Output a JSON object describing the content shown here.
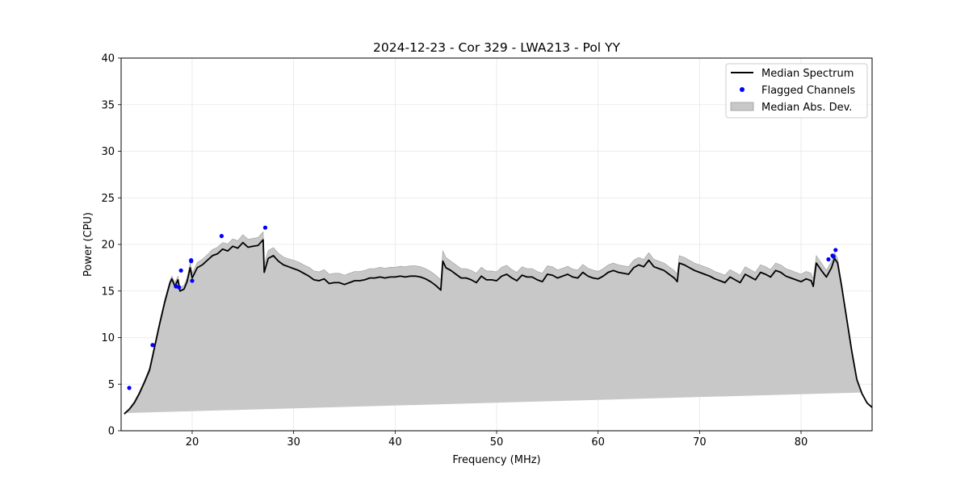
{
  "chart_data": {
    "type": "line",
    "title": "2024-12-23 - Cor 329 - LWA213 - Pol YY",
    "xlabel": "Frequency (MHz)",
    "ylabel": "Power (CPU)",
    "xlim": [
      13,
      87
    ],
    "ylim": [
      0,
      40
    ],
    "xticks": [
      20,
      30,
      40,
      50,
      60,
      70,
      80
    ],
    "yticks": [
      0,
      5,
      10,
      15,
      20,
      25,
      30,
      35,
      40
    ],
    "grid": true,
    "legend_position": "top-right",
    "legend": [
      "Median Spectrum",
      "Flagged Channels",
      "Median Abs. Dev."
    ],
    "colors": {
      "median": "#000000",
      "flagged": "#0000ff",
      "mad_fill": "#c8c8c8",
      "mad_edge": "#9a9a9a"
    },
    "series": [
      {
        "name": "Median Spectrum",
        "x": [
          13.3,
          13.8,
          14.3,
          14.8,
          15.3,
          15.8,
          16.3,
          16.8,
          17.3,
          17.8,
          18.0,
          18.3,
          18.6,
          18.8,
          19.2,
          19.5,
          19.8,
          20.0,
          20.5,
          21.0,
          21.5,
          22.0,
          22.5,
          23.0,
          23.5,
          24.0,
          24.5,
          25.0,
          25.5,
          26.0,
          26.5,
          27.0,
          27.1,
          27.5,
          28.0,
          28.5,
          29.0,
          29.5,
          30.0,
          30.5,
          31.0,
          31.5,
          32.0,
          32.5,
          33.0,
          33.5,
          34.0,
          34.5,
          35.0,
          35.5,
          36.0,
          36.5,
          37.0,
          37.5,
          38.0,
          38.5,
          39.0,
          39.5,
          40.0,
          40.5,
          41.0,
          41.5,
          42.0,
          42.5,
          43.0,
          43.5,
          44.0,
          44.5,
          44.7,
          45.0,
          45.5,
          46.0,
          46.5,
          47.0,
          47.5,
          48.0,
          48.5,
          49.0,
          49.5,
          50.0,
          50.5,
          51.0,
          51.5,
          52.0,
          52.5,
          53.0,
          53.5,
          54.0,
          54.5,
          55.0,
          55.5,
          56.0,
          56.5,
          57.0,
          57.5,
          58.0,
          58.5,
          59.0,
          59.5,
          60.0,
          60.5,
          61.0,
          61.5,
          62.0,
          62.5,
          63.0,
          63.5,
          64.0,
          64.5,
          65.0,
          65.5,
          66.0,
          66.5,
          67.0,
          67.5,
          67.8,
          68.0,
          68.5,
          69.0,
          69.5,
          70.0,
          70.5,
          71.0,
          71.5,
          72.0,
          72.5,
          73.0,
          73.5,
          74.0,
          74.5,
          75.0,
          75.5,
          76.0,
          76.5,
          77.0,
          77.5,
          78.0,
          78.5,
          79.0,
          79.5,
          80.0,
          80.5,
          81.0,
          81.2,
          81.5,
          82.0,
          82.5,
          83.0,
          83.3,
          83.6,
          84.0,
          84.5,
          85.0,
          85.5,
          86.0,
          86.5,
          87.0
        ],
        "values": [
          1.8,
          2.3,
          3.0,
          4.0,
          5.2,
          6.5,
          9.0,
          11.5,
          13.8,
          15.8,
          16.3,
          15.5,
          16.2,
          15.0,
          15.2,
          16.0,
          17.5,
          16.4,
          17.5,
          17.8,
          18.3,
          18.8,
          19.0,
          19.5,
          19.3,
          19.8,
          19.6,
          20.2,
          19.7,
          19.8,
          19.9,
          20.5,
          17.0,
          18.5,
          18.8,
          18.2,
          17.8,
          17.6,
          17.4,
          17.2,
          16.9,
          16.6,
          16.2,
          16.1,
          16.3,
          15.8,
          15.9,
          15.9,
          15.7,
          15.9,
          16.1,
          16.1,
          16.2,
          16.4,
          16.4,
          16.5,
          16.4,
          16.5,
          16.5,
          16.6,
          16.5,
          16.6,
          16.6,
          16.5,
          16.3,
          16.0,
          15.6,
          15.1,
          18.2,
          17.5,
          17.2,
          16.8,
          16.4,
          16.4,
          16.2,
          15.9,
          16.6,
          16.2,
          16.2,
          16.1,
          16.6,
          16.8,
          16.4,
          16.1,
          16.7,
          16.5,
          16.5,
          16.2,
          16.0,
          16.8,
          16.7,
          16.4,
          16.6,
          16.8,
          16.5,
          16.4,
          17.0,
          16.6,
          16.4,
          16.3,
          16.6,
          17.0,
          17.2,
          17.0,
          16.9,
          16.8,
          17.5,
          17.8,
          17.6,
          18.3,
          17.6,
          17.4,
          17.2,
          16.8,
          16.4,
          16.0,
          18.0,
          17.8,
          17.5,
          17.2,
          17.0,
          16.8,
          16.6,
          16.3,
          16.1,
          15.9,
          16.5,
          16.2,
          15.9,
          16.8,
          16.5,
          16.2,
          17.0,
          16.8,
          16.5,
          17.2,
          17.0,
          16.6,
          16.4,
          16.2,
          16.0,
          16.3,
          16.1,
          15.5,
          18.0,
          17.2,
          16.5,
          17.5,
          18.5,
          18.0,
          15.5,
          12.0,
          8.5,
          5.5,
          4.0,
          3.0,
          2.5
        ]
      },
      {
        "name": "Median Abs. Dev.",
        "mad": [
          0.1,
          0.1,
          0.15,
          0.2,
          0.2,
          0.3,
          0.3,
          0.3,
          0.3,
          0.3,
          0.3,
          0.4,
          0.4,
          0.4,
          0.4,
          0.45,
          0.5,
          0.5,
          0.55,
          0.6,
          0.6,
          0.65,
          0.7,
          0.7,
          0.75,
          0.8,
          0.8,
          0.85,
          0.85,
          0.85,
          0.85,
          0.85,
          0.85,
          0.85,
          0.85,
          0.85,
          0.85,
          0.85,
          0.9,
          0.9,
          0.9,
          0.95,
          0.95,
          0.95,
          1.0,
          1.0,
          1.0,
          1.0,
          1.0,
          1.0,
          1.0,
          1.0,
          1.0,
          1.0,
          1.0,
          1.05,
          1.05,
          1.05,
          1.05,
          1.05,
          1.1,
          1.1,
          1.1,
          1.1,
          1.1,
          1.1,
          1.1,
          1.1,
          1.1,
          1.1,
          1.0,
          1.0,
          1.0,
          1.0,
          1.0,
          1.0,
          0.95,
          0.95,
          0.95,
          0.95,
          0.95,
          0.95,
          0.9,
          0.9,
          0.9,
          0.9,
          0.9,
          0.9,
          0.9,
          0.9,
          0.9,
          0.85,
          0.85,
          0.85,
          0.85,
          0.85,
          0.85,
          0.85,
          0.85,
          0.8,
          0.8,
          0.8,
          0.8,
          0.8,
          0.8,
          0.8,
          0.8,
          0.8,
          0.8,
          0.8,
          0.8,
          0.8,
          0.8,
          0.8,
          0.8,
          0.8,
          0.8,
          0.8,
          0.8,
          0.8,
          0.8,
          0.8,
          0.8,
          0.8,
          0.8,
          0.8,
          0.8,
          0.8,
          0.8,
          0.8,
          0.8,
          0.8,
          0.8,
          0.8,
          0.8,
          0.8,
          0.8,
          0.8,
          0.8,
          0.8,
          0.8,
          0.8,
          0.8,
          0.8,
          0.8,
          0.8,
          0.7,
          0.7,
          0.6,
          0.5,
          0.3,
          0.2,
          0.15,
          0.1,
          0.1
        ]
      },
      {
        "name": "Flagged Channels",
        "x": [
          13.8,
          16.1,
          18.4,
          18.7,
          18.9,
          19.9,
          19.9,
          20.0,
          22.9,
          27.2,
          82.7,
          83.1,
          83.2,
          83.4
        ],
        "values": [
          4.6,
          9.2,
          15.5,
          15.4,
          17.2,
          18.3,
          18.2,
          16.1,
          20.9,
          21.8,
          18.4,
          18.8,
          18.7,
          19.4
        ]
      }
    ]
  }
}
